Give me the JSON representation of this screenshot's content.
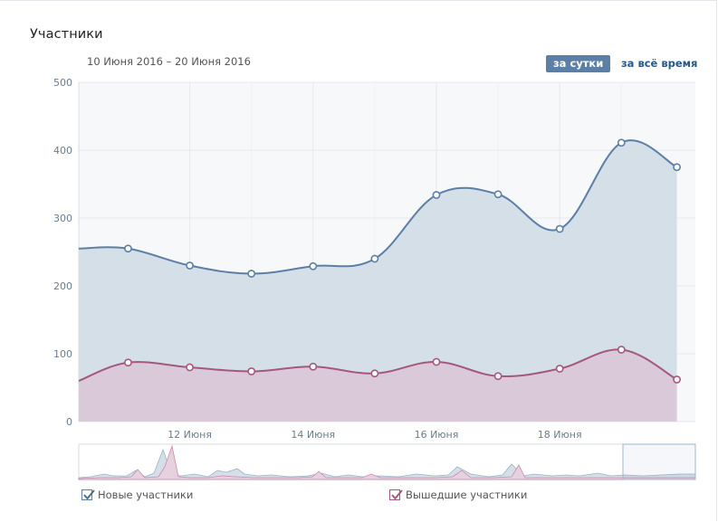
{
  "header": {
    "title": "Участники",
    "date_range": "10 Июня 2016 – 20 Июня 2016",
    "period_day": "за сутки",
    "period_all": "за всё время"
  },
  "legend": {
    "new_label": "Новые участники",
    "left_label": "Вышедшие участники"
  },
  "colors": {
    "new_line": "#5b7fa6",
    "new_fill": "#d5dfe8",
    "left_line": "#a6577f",
    "left_fill": "#d9c5d6"
  },
  "chart_data": {
    "type": "area",
    "y_ticks": [
      "0",
      "100",
      "200",
      "300",
      "400",
      "500"
    ],
    "ylim": [
      0,
      500
    ],
    "x_ticks": [
      {
        "day": 12,
        "label": "12 Июня"
      },
      {
        "day": 14,
        "label": "14 Июня"
      },
      {
        "day": 16,
        "label": "16 Июня"
      },
      {
        "day": 18,
        "label": "18 Июня"
      }
    ],
    "x_range": [
      10.2,
      20.2
    ],
    "grid": true,
    "series": [
      {
        "name": "Новые участники",
        "x": [
          10.2,
          11.0,
          12.0,
          13.0,
          14.0,
          15.0,
          16.0,
          17.0,
          18.0,
          19.0,
          19.9
        ],
        "y": [
          255,
          255,
          230,
          218,
          229,
          240,
          334,
          335,
          284,
          411,
          375
        ]
      },
      {
        "name": "Вышедшие участники",
        "x": [
          10.2,
          11.0,
          12.0,
          13.0,
          14.0,
          15.0,
          16.0,
          17.0,
          18.0,
          19.0,
          19.9
        ],
        "y": [
          60,
          87,
          80,
          74,
          81,
          71,
          88,
          67,
          78,
          106,
          62
        ]
      }
    ]
  }
}
